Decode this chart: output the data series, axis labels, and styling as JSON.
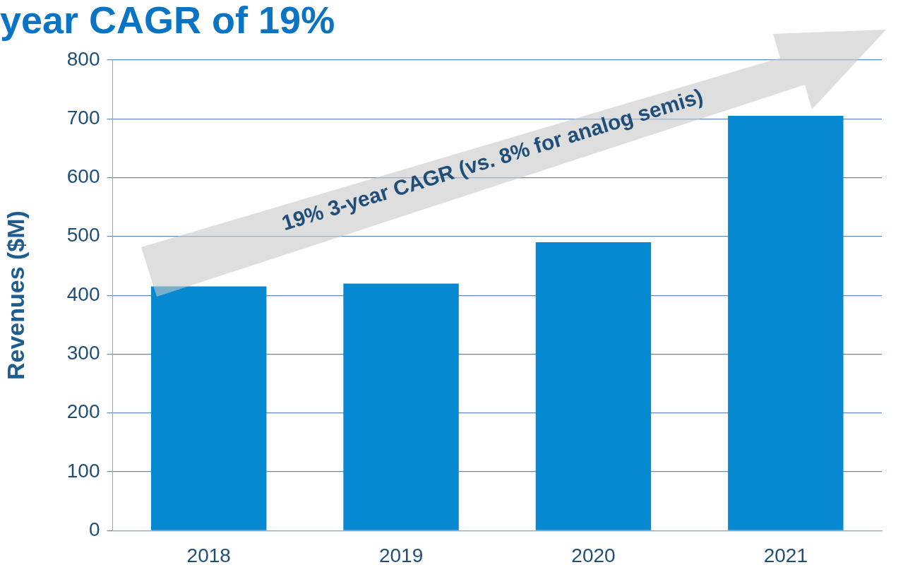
{
  "chart_data": {
    "type": "bar",
    "title": "year CAGR of 19%",
    "ylabel": "Revenues ($M)",
    "categories": [
      "2018",
      "2019",
      "2020",
      "2021"
    ],
    "values": [
      415,
      420,
      490,
      705
    ],
    "color": "#0689d0",
    "ylim": [
      0,
      800
    ],
    "yticks": [
      0,
      100,
      200,
      300,
      400,
      500,
      600,
      700,
      800
    ],
    "grid": "y",
    "legend": false,
    "annotations": [
      "19% 3-year CAGR (vs. 8% for analog semis)"
    ]
  }
}
